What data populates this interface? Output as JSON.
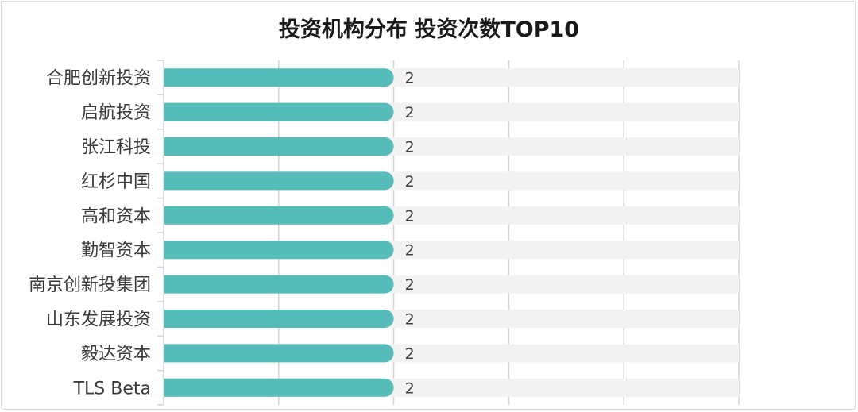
{
  "chart_data": {
    "type": "bar",
    "orientation": "horizontal",
    "title": "投资机构分布 投资次数TOP10",
    "categories": [
      "合肥创新投资",
      "启航投资",
      "张江科投",
      "红杉中国",
      "高和资本",
      "勤智资本",
      "南京创新投集团",
      "山东发展投资",
      "毅达资本",
      "TLS Beta"
    ],
    "values": [
      2,
      2,
      2,
      2,
      2,
      2,
      2,
      2,
      2,
      2
    ],
    "xlim": [
      0,
      5
    ],
    "grid": true,
    "colors": {
      "bar": "#55bcb9",
      "track": "#f2f2f2",
      "grid": "#d4d4d4"
    }
  }
}
